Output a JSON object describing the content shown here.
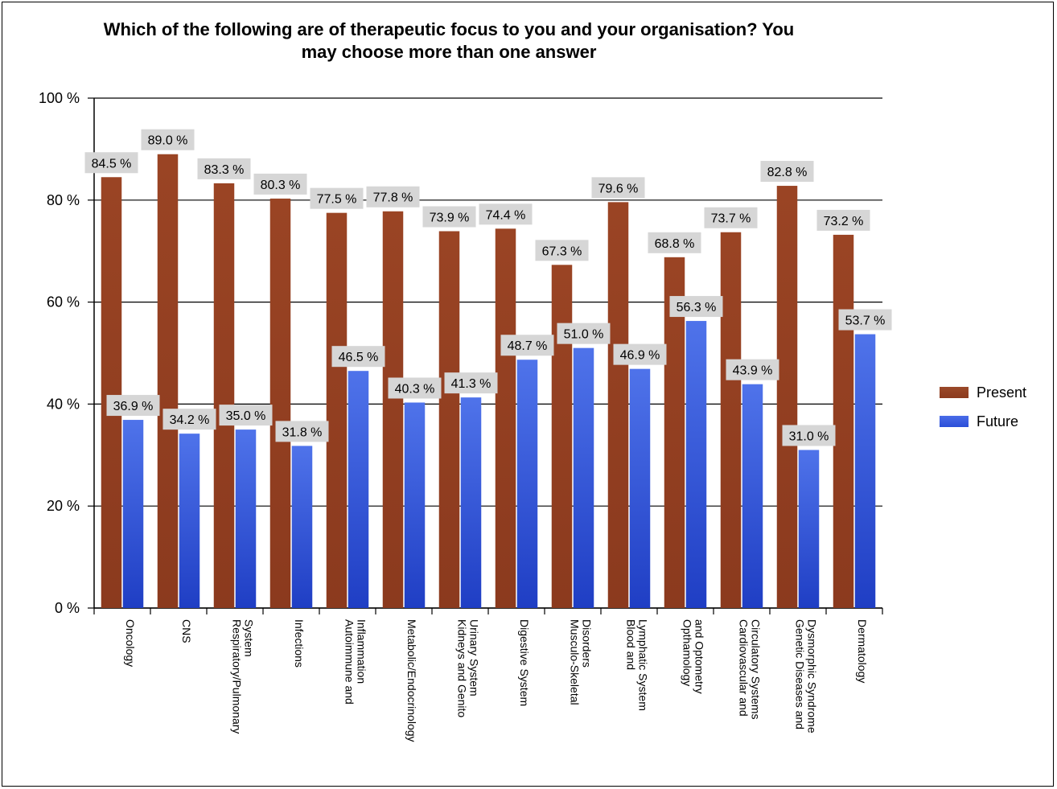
{
  "title_line1": "Which of the following are of therapeutic focus to you and your organisation? You",
  "title_line2": "may choose more than one answer",
  "colors": {
    "present": "#8B3A1E",
    "future": "#2B4FD8"
  },
  "chart_data": {
    "type": "bar",
    "title": "Which of the following are of therapeutic focus to you and your organisation? You may choose more than one answer",
    "ylim": [
      0,
      100
    ],
    "yticks": [
      0,
      20,
      40,
      60,
      80,
      100
    ],
    "ytick_labels": [
      "0 %",
      "20 %",
      "40 %",
      "60 %",
      "80 %",
      "100 %"
    ],
    "grid": true,
    "legend": "right",
    "categories": [
      [
        "Oncology"
      ],
      [
        "CNS"
      ],
      [
        "Respiratory/Pulmonary",
        "System"
      ],
      [
        "Infections"
      ],
      [
        "Autoimmune and",
        "Inflammation"
      ],
      [
        "Metabolic/Endocrinology"
      ],
      [
        "Kidneys and Genito",
        "Urinary System"
      ],
      [
        "Digestive System"
      ],
      [
        "Musculo-Skeletal",
        "Disorders"
      ],
      [
        "Blood and",
        "Lymphatic System"
      ],
      [
        "Opthamology",
        "and Optometry"
      ],
      [
        "Cardiovascular and",
        "Circulatory Systems"
      ],
      [
        "Genetic Diseases and",
        "Dysmorphic Syndrome"
      ],
      [
        "Dermatology"
      ]
    ],
    "series": [
      {
        "name": "Present",
        "values": [
          84.5,
          89.0,
          83.3,
          80.3,
          77.5,
          77.8,
          73.9,
          74.4,
          67.3,
          79.6,
          68.8,
          73.7,
          82.8,
          73.2
        ]
      },
      {
        "name": "Future",
        "values": [
          36.9,
          34.2,
          35.0,
          31.8,
          46.5,
          40.3,
          41.3,
          48.7,
          51.0,
          46.9,
          56.3,
          43.9,
          31.0,
          53.7
        ]
      }
    ]
  }
}
